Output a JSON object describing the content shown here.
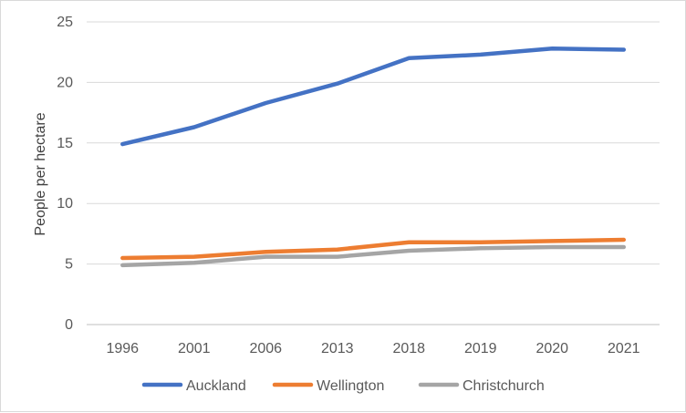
{
  "chart_data": {
    "type": "line",
    "title": "",
    "xlabel": "",
    "ylabel": "People per hectare",
    "categories": [
      "1996",
      "2001",
      "2006",
      "2013",
      "2018",
      "2019",
      "2020",
      "2021"
    ],
    "ylim": [
      0,
      25
    ],
    "yticks": [
      0,
      5,
      10,
      15,
      20,
      25
    ],
    "grid": true,
    "legend_position": "bottom",
    "series": [
      {
        "name": "Auckland",
        "color": "#4472C4",
        "values": [
          14.9,
          16.3,
          18.3,
          19.9,
          22.0,
          22.3,
          22.8,
          22.7
        ]
      },
      {
        "name": "Wellington",
        "color": "#ED7D31",
        "values": [
          5.5,
          5.6,
          6.0,
          6.2,
          6.8,
          6.8,
          6.9,
          7.0
        ]
      },
      {
        "name": "Christchurch",
        "color": "#A5A5A5",
        "values": [
          4.9,
          5.1,
          5.6,
          5.6,
          6.1,
          6.3,
          6.4,
          6.4
        ]
      }
    ]
  }
}
